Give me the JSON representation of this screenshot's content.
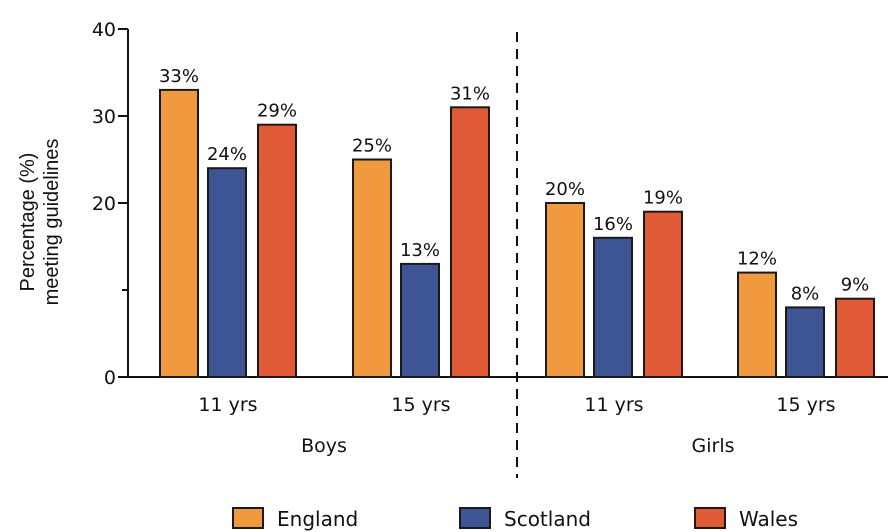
{
  "chart_data": {
    "type": "bar",
    "ylabel": [
      "Percentage (%)",
      "meeting guidelines"
    ],
    "y_ticks": [
      0,
      20,
      30,
      40
    ],
    "ylim": [
      0,
      40
    ],
    "groups": [
      {
        "label": "Boys",
        "categories": [
          "11 yrs",
          "15 yrs"
        ]
      },
      {
        "label": "Girls",
        "categories": [
          "11 yrs",
          "15 yrs"
        ]
      }
    ],
    "series": [
      {
        "name": "England",
        "color": "#f0993f",
        "values": [
          33,
          25,
          20,
          12
        ],
        "labels": [
          "33%",
          "25%",
          "20%",
          "12%"
        ]
      },
      {
        "name": "Scotland",
        "color": "#3d5593",
        "values": [
          24,
          13,
          16,
          8
        ],
        "labels": [
          "24%",
          "13%",
          "16%",
          "8%"
        ]
      },
      {
        "name": "Wales",
        "color": "#e05a36",
        "values": [
          29,
          31,
          19,
          9
        ],
        "labels": [
          "29%",
          "31%",
          "19%",
          "9%"
        ]
      }
    ],
    "grid": false,
    "legend_position": "bottom",
    "group_divider": "dashed"
  }
}
